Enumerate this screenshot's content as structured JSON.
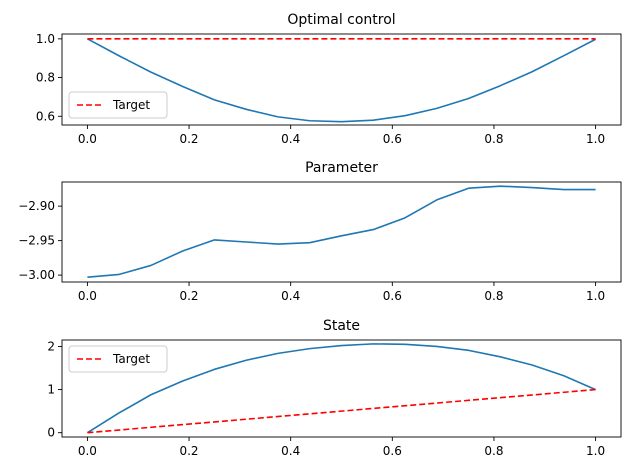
{
  "chart_data": [
    {
      "type": "line",
      "title": "Optimal control",
      "xlim": [
        -0.05,
        1.05
      ],
      "ylim": [
        0.555,
        1.025
      ],
      "xticks": [
        "0.0",
        "0.2",
        "0.4",
        "0.6",
        "0.8",
        "1.0"
      ],
      "yticks": [
        "0.6",
        "0.8",
        "1.0"
      ],
      "legend_position": "lower-left",
      "series": [
        {
          "color": "#1f77b4",
          "style": "solid",
          "x": [
            0.0,
            0.0625,
            0.125,
            0.1875,
            0.25,
            0.3125,
            0.375,
            0.4375,
            0.5,
            0.5625,
            0.625,
            0.6875,
            0.75,
            0.8125,
            0.875,
            0.9375,
            1.0
          ],
          "y": [
            1.0,
            0.912,
            0.828,
            0.754,
            0.685,
            0.636,
            0.597,
            0.577,
            0.572,
            0.58,
            0.603,
            0.641,
            0.692,
            0.758,
            0.83,
            0.913,
            0.998
          ]
        },
        {
          "name": "Target",
          "color": "#ff0000",
          "style": "dashed",
          "x": [
            0.0,
            1.0
          ],
          "y": [
            1.0,
            1.0
          ]
        }
      ]
    },
    {
      "type": "line",
      "title": "Parameter",
      "xlim": [
        -0.05,
        1.05
      ],
      "ylim": [
        -3.01,
        -2.865
      ],
      "xticks": [
        "0.0",
        "0.2",
        "0.4",
        "0.6",
        "0.8",
        "1.0"
      ],
      "yticks": [
        "−2.90",
        "−2.95",
        "−3.00"
      ],
      "series": [
        {
          "color": "#1f77b4",
          "style": "solid",
          "x": [
            0.0,
            0.0625,
            0.125,
            0.1875,
            0.25,
            0.3125,
            0.375,
            0.4375,
            0.5,
            0.5625,
            0.625,
            0.6875,
            0.75,
            0.8125,
            0.875,
            0.9375,
            1.0
          ],
          "y": [
            -3.003,
            -2.999,
            -2.986,
            -2.965,
            -2.949,
            -2.952,
            -2.955,
            -2.953,
            -2.943,
            -2.934,
            -2.917,
            -2.891,
            -2.874,
            -2.871,
            -2.873,
            -2.876,
            -2.876
          ]
        }
      ]
    },
    {
      "type": "line",
      "title": "State",
      "xlim": [
        -0.05,
        1.05
      ],
      "ylim": [
        -0.1,
        2.15
      ],
      "xticks": [
        "0.0",
        "0.2",
        "0.4",
        "0.6",
        "0.8",
        "1.0"
      ],
      "yticks": [
        "0",
        "1",
        "2"
      ],
      "legend_position": "upper-left",
      "series": [
        {
          "color": "#1f77b4",
          "style": "solid",
          "x": [
            0.0,
            0.0625,
            0.125,
            0.1875,
            0.25,
            0.3125,
            0.375,
            0.4375,
            0.5,
            0.5625,
            0.625,
            0.6875,
            0.75,
            0.8125,
            0.875,
            0.9375,
            1.0
          ],
          "y": [
            0.0,
            0.46,
            0.88,
            1.2,
            1.47,
            1.68,
            1.84,
            1.95,
            2.02,
            2.06,
            2.05,
            2.0,
            1.91,
            1.76,
            1.57,
            1.32,
            1.0
          ]
        },
        {
          "name": "Target",
          "color": "#ff0000",
          "style": "dashed",
          "x": [
            0.0,
            1.0
          ],
          "y": [
            0.0,
            1.0
          ]
        }
      ]
    }
  ]
}
